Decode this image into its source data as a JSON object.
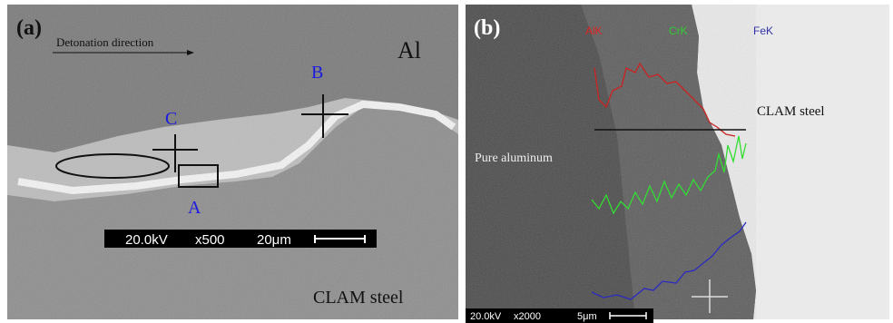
{
  "panels": [
    {
      "label": "(a)",
      "arrow_label": "Detonation direction",
      "phase_top": "Al",
      "phase_bottom": "CLAM steel",
      "points": [
        "B",
        "C",
        "A"
      ],
      "scale_bar": {
        "voltage": "20.0kV",
        "magnification": "x500",
        "length": "20μm"
      }
    },
    {
      "label": "(b)",
      "elements": [
        "AlK",
        "CrK",
        "FeK"
      ],
      "phase_right": "CLAM steel",
      "phase_left": "Pure aluminum",
      "scale_bar": {
        "voltage": "20.0kV",
        "magnification": "x2000",
        "length": "5μm"
      }
    }
  ]
}
